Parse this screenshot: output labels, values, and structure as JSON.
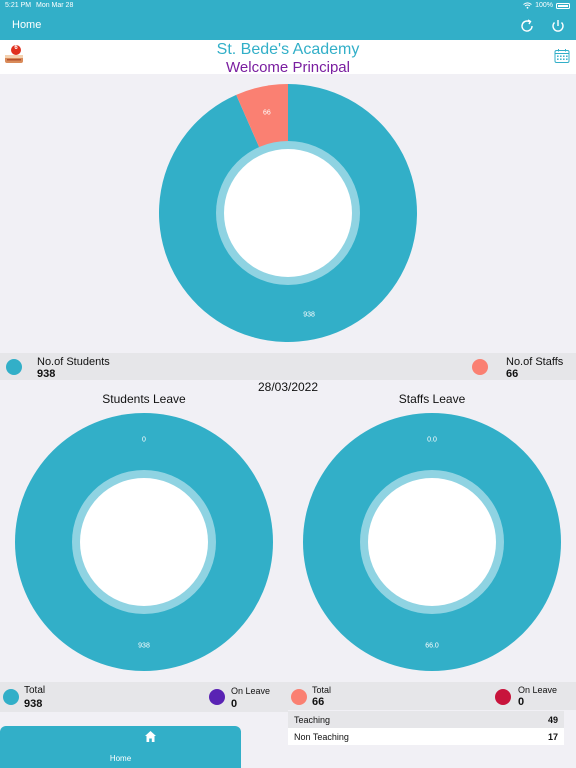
{
  "status_bar": {
    "time": "5:21 PM",
    "date": "Mon Mar 28",
    "battery": "100%"
  },
  "nav": {
    "title": "Home",
    "refresh_icon": "refresh-icon",
    "power_icon": "power-icon"
  },
  "header": {
    "school_name": "St. Bede's Academy",
    "welcome": "Welcome Principal",
    "badge_count": "6"
  },
  "colors": {
    "teal": "#32afc8",
    "salmon": "#fa8072",
    "purple": "#5a23b4",
    "crimson": "#c8143c"
  },
  "main_chart": {
    "chart_data": {
      "type": "pie",
      "categories": [
        "No.of Students",
        "No.of Staffs"
      ],
      "values": [
        938,
        66
      ],
      "value_labels": [
        "938",
        "66"
      ]
    },
    "legend": [
      {
        "label": "No.of Students",
        "value": "938"
      },
      {
        "label": "No.of Staffs",
        "value": "66"
      }
    ]
  },
  "date": "28/03/2022",
  "students_leave": {
    "title": "Students Leave",
    "chart_data": {
      "type": "pie",
      "categories": [
        "Total",
        "On Leave"
      ],
      "values": [
        938,
        0
      ],
      "value_labels": [
        "938",
        "0"
      ]
    },
    "legend": [
      {
        "label": "Total",
        "value": "938"
      },
      {
        "label": "On Leave",
        "value": "0"
      }
    ]
  },
  "staffs_leave": {
    "title": "Staffs Leave",
    "chart_data": {
      "type": "pie",
      "categories": [
        "Total",
        "On Leave"
      ],
      "values": [
        66,
        0
      ],
      "value_labels": [
        "66.0",
        "0.0"
      ]
    },
    "legend": [
      {
        "label": "Total",
        "value": "66"
      },
      {
        "label": "On Leave",
        "value": "0"
      }
    ],
    "breakdown": [
      {
        "label": "Teaching",
        "value": "49"
      },
      {
        "label": "Non Teaching",
        "value": "17"
      }
    ]
  },
  "tabbar": {
    "home_label": "Home"
  }
}
